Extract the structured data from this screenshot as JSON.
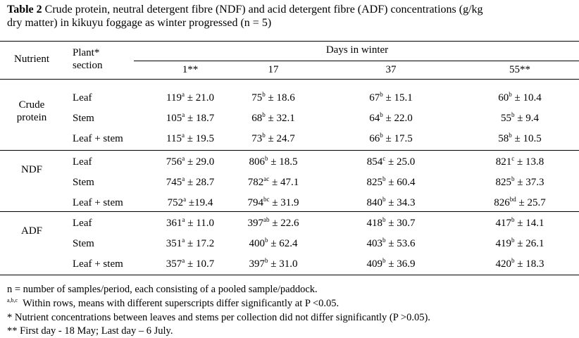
{
  "title": {
    "label": "Table 2",
    "line1": " Crude protein, neutral detergent fibre (NDF) and acid detergent fibre (ADF) concentrations (g/kg",
    "line2": "dry matter) in kikuyu foggage as winter progressed (n = 5)"
  },
  "header": {
    "nutrient": "Nutrient",
    "section": "Plant* section",
    "days_label": "Days in winter",
    "days": [
      "1**",
      "17",
      "37",
      "55**"
    ]
  },
  "groups": [
    {
      "name": "Crude protein",
      "rows": [
        {
          "section": "Leaf",
          "cells": [
            {
              "mean": "119",
              "sup": "a",
              "sd": "± 21.0"
            },
            {
              "mean": "75",
              "sup": "b",
              "sd": "± 18.6"
            },
            {
              "mean": "67",
              "sup": "b",
              "sd": "± 15.1"
            },
            {
              "mean": "60",
              "sup": "b",
              "sd": "± 10.4"
            }
          ]
        },
        {
          "section": "Stem",
          "cells": [
            {
              "mean": "105",
              "sup": "a",
              "sd": "± 18.7"
            },
            {
              "mean": "68",
              "sup": "b",
              "sd": "± 32.1"
            },
            {
              "mean": "64",
              "sup": "b",
              "sd": "± 22.0"
            },
            {
              "mean": "55",
              "sup": "b",
              "sd": "± 9.4"
            }
          ]
        },
        {
          "section": "Leaf + stem",
          "cells": [
            {
              "mean": "115",
              "sup": "a",
              "sd": "± 19.5"
            },
            {
              "mean": "73",
              "sup": "b",
              "sd": "± 24.7"
            },
            {
              "mean": "66",
              "sup": "b",
              "sd": "± 17.5"
            },
            {
              "mean": "58",
              "sup": "b",
              "sd": "± 10.5"
            }
          ]
        }
      ]
    },
    {
      "name": "NDF",
      "rows": [
        {
          "section": "Leaf",
          "cells": [
            {
              "mean": "756",
              "sup": "a",
              "sd": "± 29.0"
            },
            {
              "mean": "806",
              "sup": "b",
              "sd": "± 18.5"
            },
            {
              "mean": "854",
              "sup": "c",
              "sd": "± 25.0"
            },
            {
              "mean": "821",
              "sup": "c",
              "sd": "± 13.8"
            }
          ]
        },
        {
          "section": "Stem",
          "cells": [
            {
              "mean": "745",
              "sup": "a",
              "sd": "± 28.7"
            },
            {
              "mean": "782",
              "sup": "ac",
              "sd": "± 47.1"
            },
            {
              "mean": "825",
              "sup": "b",
              "sd": "± 60.4"
            },
            {
              "mean": "825",
              "sup": "b",
              "sd": "± 37.3"
            }
          ]
        },
        {
          "section": "Leaf + stem",
          "cells": [
            {
              "mean": "752",
              "sup": "a",
              "sd": "±19.4"
            },
            {
              "mean": "794",
              "sup": "bc",
              "sd": "± 31.9"
            },
            {
              "mean": "840",
              "sup": "b",
              "sd": "± 34.3"
            },
            {
              "mean": "826",
              "sup": "bd",
              "sd": "± 25.7"
            }
          ]
        }
      ]
    },
    {
      "name": "ADF",
      "rows": [
        {
          "section": "Leaf",
          "cells": [
            {
              "mean": "361",
              "sup": "a",
              "sd": "± 11.0"
            },
            {
              "mean": "397",
              "sup": "ab",
              "sd": "± 22.6"
            },
            {
              "mean": "418",
              "sup": "b",
              "sd": "± 30.7"
            },
            {
              "mean": "417",
              "sup": "b",
              "sd": "± 14.1"
            }
          ]
        },
        {
          "section": "Stem",
          "cells": [
            {
              "mean": "351",
              "sup": "a",
              "sd": "± 17.2"
            },
            {
              "mean": "400",
              "sup": "b",
              "sd": "± 62.4"
            },
            {
              "mean": "403",
              "sup": "b",
              "sd": "± 53.6"
            },
            {
              "mean": "419",
              "sup": "b",
              "sd": "± 26.1"
            }
          ]
        },
        {
          "section": "Leaf + stem",
          "cells": [
            {
              "mean": "357",
              "sup": "a",
              "sd": "± 10.7"
            },
            {
              "mean": "397",
              "sup": "b",
              "sd": "± 31.0"
            },
            {
              "mean": "409",
              "sup": "b",
              "sd": "± 36.9"
            },
            {
              "mean": "420",
              "sup": "b",
              "sd": "± 18.3"
            }
          ]
        }
      ]
    }
  ],
  "notes": [
    {
      "text": "n = number of samples/period, each consisting of a pooled sample/paddock."
    },
    {
      "sup": "a,b,c",
      "text": "  Within rows, means with different superscripts differ significantly at P <0.05."
    },
    {
      "text": "* Nutrient concentrations between leaves and stems per collection did not differ significantly (P >0.05)."
    },
    {
      "text": "** First day - 18 May; Last day – 6 July."
    }
  ]
}
